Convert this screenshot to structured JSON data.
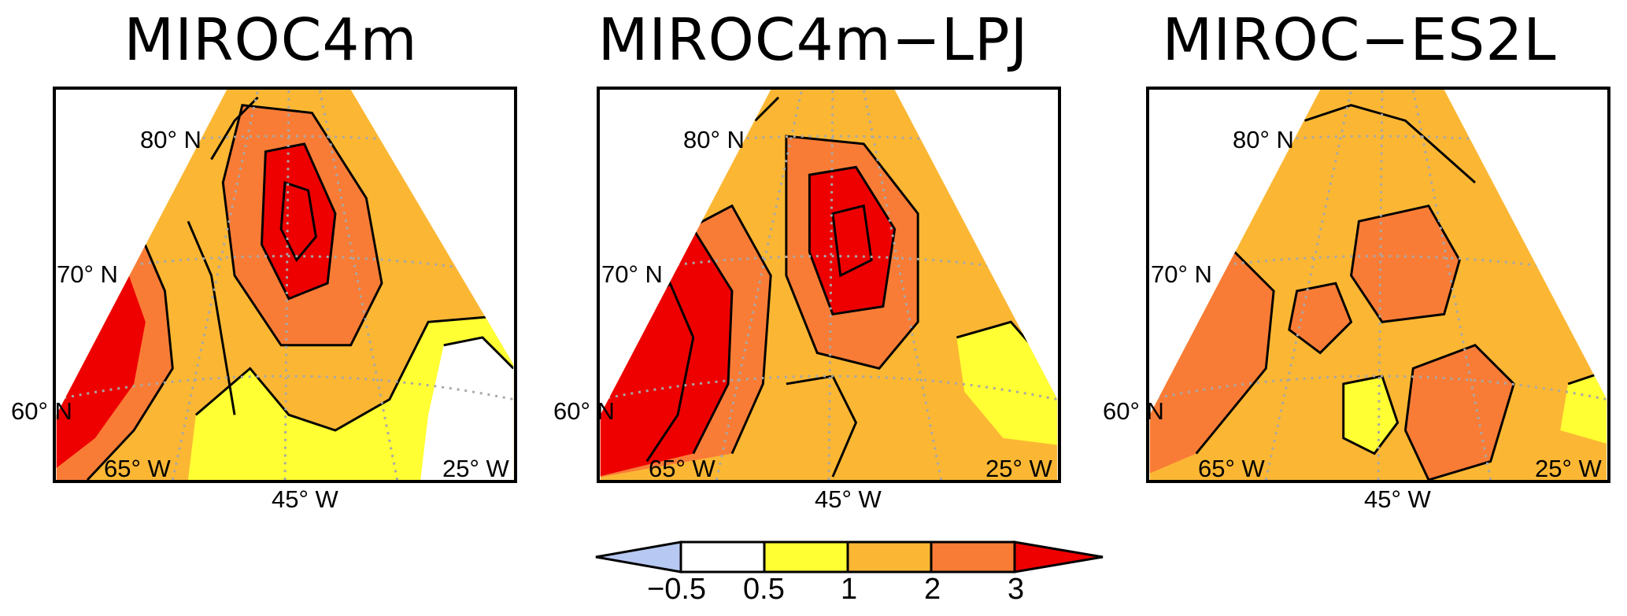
{
  "panels": [
    {
      "title": "MIROC4m",
      "lat_labels": [
        "80° N",
        "70° N",
        "60° N"
      ],
      "lon_labels": [
        "65° W",
        "45° W",
        "25° W"
      ]
    },
    {
      "title": "MIROC4m−LPJ",
      "lat_labels": [
        "80° N",
        "70° N",
        "60° N"
      ],
      "lon_labels": [
        "65° W",
        "45° W",
        "25° W"
      ]
    },
    {
      "title": "MIROC−ES2L",
      "lat_labels": [
        "80° N",
        "70° N",
        "60° N"
      ],
      "lon_labels": [
        "65° W",
        "45° W",
        "25° W"
      ]
    }
  ],
  "colorbar": {
    "ticks": [
      "−0.5",
      "0.5",
      "1",
      "2",
      "3"
    ],
    "colors": {
      "below_neg0_5": "#b7c8f2",
      "neg0_5_to_0_5": "#ffffff",
      "0_5_to_1": "#ffff33",
      "1_to_2": "#fbb734",
      "2_to_3": "#f97c36",
      "above_3": "#ee0000"
    }
  }
}
